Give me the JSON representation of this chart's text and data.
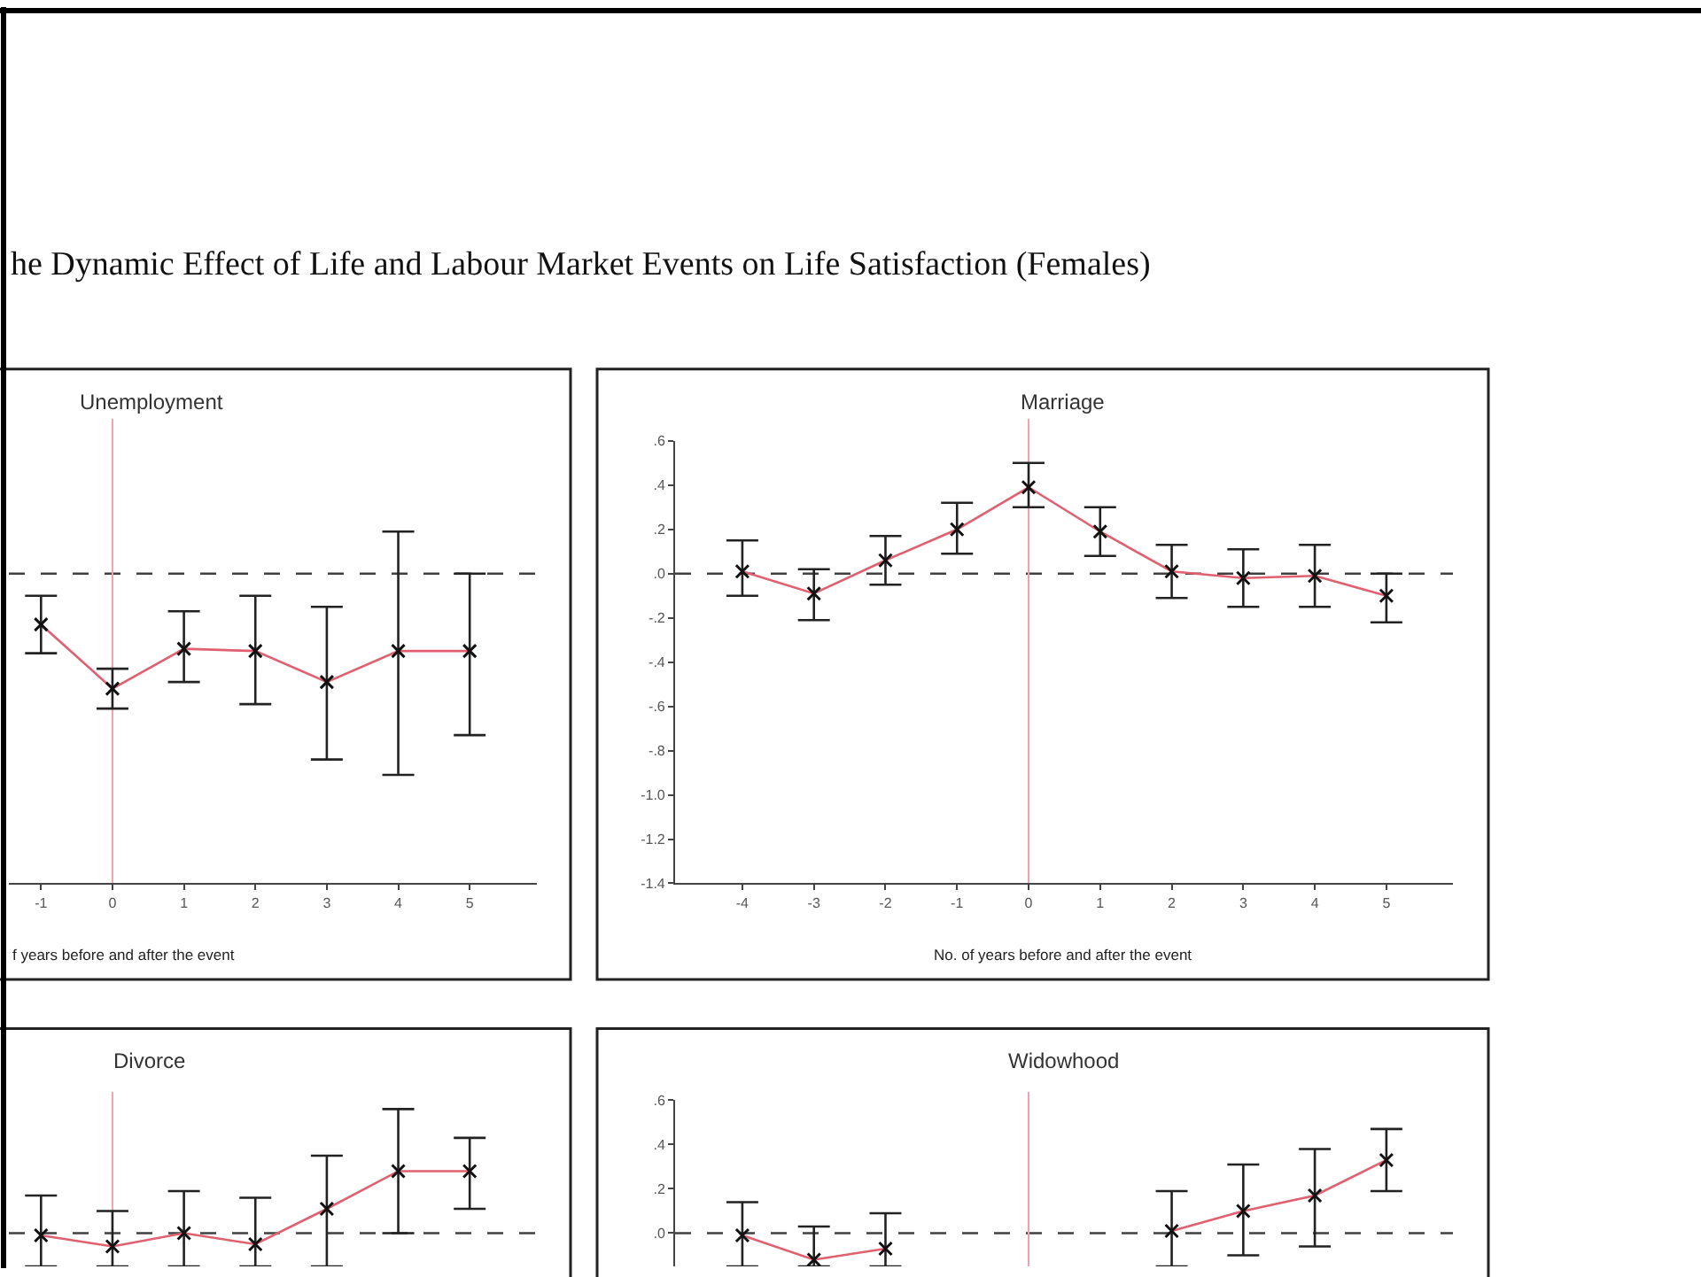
{
  "chart_data": [
    {
      "type": "other",
      "title": "he Dynamic Effect of Life and Labour Market Events on Life Satisfaction (Females)"
    },
    {
      "type": "line",
      "title": "Unemployment",
      "xlabel": "f years before and after the event",
      "x": [
        -1,
        0,
        1,
        2,
        3,
        4,
        5
      ],
      "values": [
        -0.23,
        -0.52,
        -0.34,
        -0.35,
        -0.49,
        -0.35,
        -0.35
      ],
      "errors": [
        [
          -0.36,
          -0.1
        ],
        [
          -0.61,
          -0.43
        ],
        [
          -0.49,
          -0.17
        ],
        [
          -0.59,
          -0.1
        ],
        [
          -0.84,
          -0.15
        ],
        [
          -0.91,
          0.19
        ],
        [
          -0.73,
          0.0
        ]
      ],
      "color": "#e06070",
      "marker": "cross",
      "line_style": "solid",
      "xlim": [
        -1.45,
        5.94
      ],
      "xticks": [
        -1,
        0,
        1,
        2,
        3,
        4,
        5
      ],
      "ylim": [
        -1.4,
        0.6
      ],
      "tick_labels": "x",
      "ref_lines": [
        {
          "axis": "y",
          "value": 0,
          "line_style": "dashed",
          "color": "#404040"
        },
        {
          "axis": "x",
          "value": 0,
          "line_style": "solid",
          "color": "#f4a0a8"
        }
      ]
    },
    {
      "type": "line",
      "title": "Marriage",
      "xlabel": "No. of years before and after the event",
      "x": [
        -4,
        -3,
        -2,
        -1,
        0,
        1,
        2,
        3,
        4,
        5
      ],
      "values": [
        0.01,
        -0.09,
        0.06,
        0.2,
        0.39,
        0.19,
        0.01,
        -0.02,
        -0.01,
        -0.1
      ],
      "errors": [
        [
          -0.1,
          0.15
        ],
        [
          -0.21,
          0.02
        ],
        [
          -0.05,
          0.17
        ],
        [
          0.09,
          0.32
        ],
        [
          0.3,
          0.5
        ],
        [
          0.08,
          0.3
        ],
        [
          -0.11,
          0.13
        ],
        [
          -0.15,
          0.11
        ],
        [
          -0.15,
          0.13
        ],
        [
          -0.22,
          0.0
        ]
      ],
      "color": "#e06070",
      "marker": "cross",
      "line_style": "solid",
      "xlim": [
        -4.94,
        5.93
      ],
      "xticks": [
        -4,
        -3,
        -2,
        -1,
        0,
        1,
        2,
        3,
        4,
        5
      ],
      "ylim": [
        -1.4,
        0.6
      ],
      "yticks": [
        {
          "value": 0.6,
          "label": ".6"
        },
        {
          "value": 0.4,
          "label": ".4"
        },
        {
          "value": 0.2,
          "label": ".2"
        },
        {
          "value": 0,
          "label": ".0"
        },
        {
          "value": -0.2,
          "label": "-.2"
        },
        {
          "value": -0.4,
          "label": "-.4"
        },
        {
          "value": -0.6,
          "label": "-.6"
        },
        {
          "value": -0.8,
          "label": "-.8"
        },
        {
          "value": -1.0,
          "label": "-1.0"
        },
        {
          "value": -1.2,
          "label": "-1.2"
        },
        {
          "value": -1.4,
          "label": "-1.4"
        }
      ],
      "ref_lines": [
        {
          "axis": "y",
          "value": 0,
          "line_style": "dashed",
          "color": "#404040"
        },
        {
          "axis": "x",
          "value": 0,
          "line_style": "solid",
          "color": "#f4a0a8"
        }
      ]
    },
    {
      "type": "line",
      "title": "Divorce",
      "x": [
        -1,
        0,
        1,
        2,
        3,
        4,
        5
      ],
      "values": [
        -0.01,
        -0.06,
        0.0,
        -0.05,
        0.11,
        0.28,
        0.28
      ],
      "errors": [
        [
          -0.15,
          0.17
        ],
        [
          -0.15,
          0.1
        ],
        [
          -0.15,
          0.19
        ],
        [
          -0.15,
          0.16
        ],
        [
          -0.15,
          0.35
        ],
        [
          0.0,
          0.56
        ],
        [
          0.11,
          0.43
        ]
      ],
      "color": "#e06070",
      "marker": "cross",
      "line_style": "solid",
      "xlim": [
        -1.45,
        5.94
      ],
      "ylim": [
        -0.15,
        0.6
      ],
      "tick_labels": false,
      "ref_lines": [
        {
          "axis": "y",
          "value": 0,
          "line_style": "dashed",
          "color": "#404040"
        },
        {
          "axis": "x",
          "value": 0,
          "line_style": "solid",
          "color": "#f4a0a8"
        }
      ]
    },
    {
      "type": "line",
      "title": "Widowhood",
      "x": [
        -4,
        -3,
        -2,
        -1,
        0,
        1,
        2,
        3,
        4,
        5
      ],
      "values": [
        -0.01,
        -0.12,
        -0.07,
        null,
        null,
        null,
        0.01,
        0.1,
        0.17,
        0.33
      ],
      "errors": [
        [
          -0.15,
          0.14
        ],
        [
          -0.15,
          0.03
        ],
        [
          -0.15,
          0.09
        ],
        null,
        null,
        null,
        [
          -0.15,
          0.19
        ],
        [
          -0.1,
          0.31
        ],
        [
          -0.06,
          0.38
        ],
        [
          0.19,
          0.47
        ]
      ],
      "color": "#e06070",
      "marker": "cross",
      "line_style": "solid",
      "xlim": [
        -4.94,
        5.93
      ],
      "ylim": [
        -0.15,
        0.6
      ],
      "tick_labels": "y",
      "yticks": [
        {
          "value": 0.6,
          "label": ".6"
        },
        {
          "value": 0.4,
          "label": ".4"
        },
        {
          "value": 0.2,
          "label": ".2"
        },
        {
          "value": 0,
          "label": ".0"
        }
      ],
      "ref_lines": [
        {
          "axis": "y",
          "value": 0,
          "line_style": "dashed",
          "color": "#404040"
        },
        {
          "axis": "x",
          "value": 0,
          "line_style": "solid",
          "color": "#f4a0a8"
        }
      ]
    }
  ]
}
